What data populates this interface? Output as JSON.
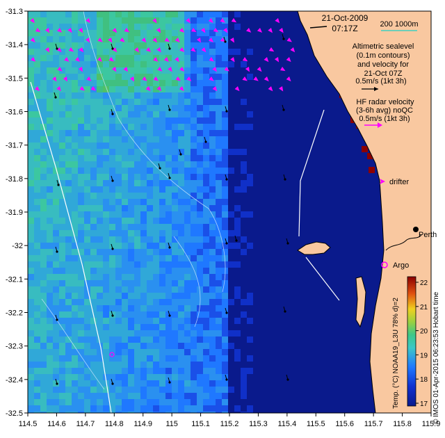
{
  "map": {
    "date": "21-Oct-2009",
    "time": "07:17Z",
    "scalebar_label": "200  1000m",
    "sealevel_text": [
      "Altimetric sealevel",
      "(0.1m contours)",
      "and velocity for",
      "21-Oct 07Z",
      "0.5m/s (1kt 3h)"
    ],
    "hf_radar_text": [
      "HF radar velocity",
      "(3-6h avg) noQC",
      "0.5m/s (1kt 3h)"
    ],
    "drifter_label": "drifter",
    "argo_label": "Argo",
    "city_label": "Perth",
    "credit": "© IMOS 01-Apr-2015 06:23:53 Hobart time",
    "colorbar_title": "Temp. (°C) NOAA19_L3U 78% d)=2",
    "colorbar_ticks": [
      "17",
      "18",
      "19",
      "20",
      "21",
      "22"
    ],
    "x_ticks": [
      "114.5",
      "114.6",
      "114.7",
      "114.8",
      "114.9",
      "115",
      "115.1",
      "115.2",
      "115.3",
      "115.4",
      "115.5",
      "115.6",
      "115.7",
      "115.8",
      "115.9"
    ],
    "y_ticks": [
      "-31.3",
      "-31.4",
      "-31.5",
      "-31.6",
      "-31.7",
      "-31.8",
      "-31.9",
      "-32",
      "-32.1",
      "-32.2",
      "-32.3",
      "-32.4",
      "-32.5"
    ],
    "colors": {
      "land": "#f9c8a0",
      "ocean_cold": "#0a1a8c",
      "ocean_mid": "#1f78ff",
      "ocean_warm": "#3cc79a",
      "radar_arrow": "#ff00ff",
      "hot_cells": "#8b0000"
    }
  }
}
